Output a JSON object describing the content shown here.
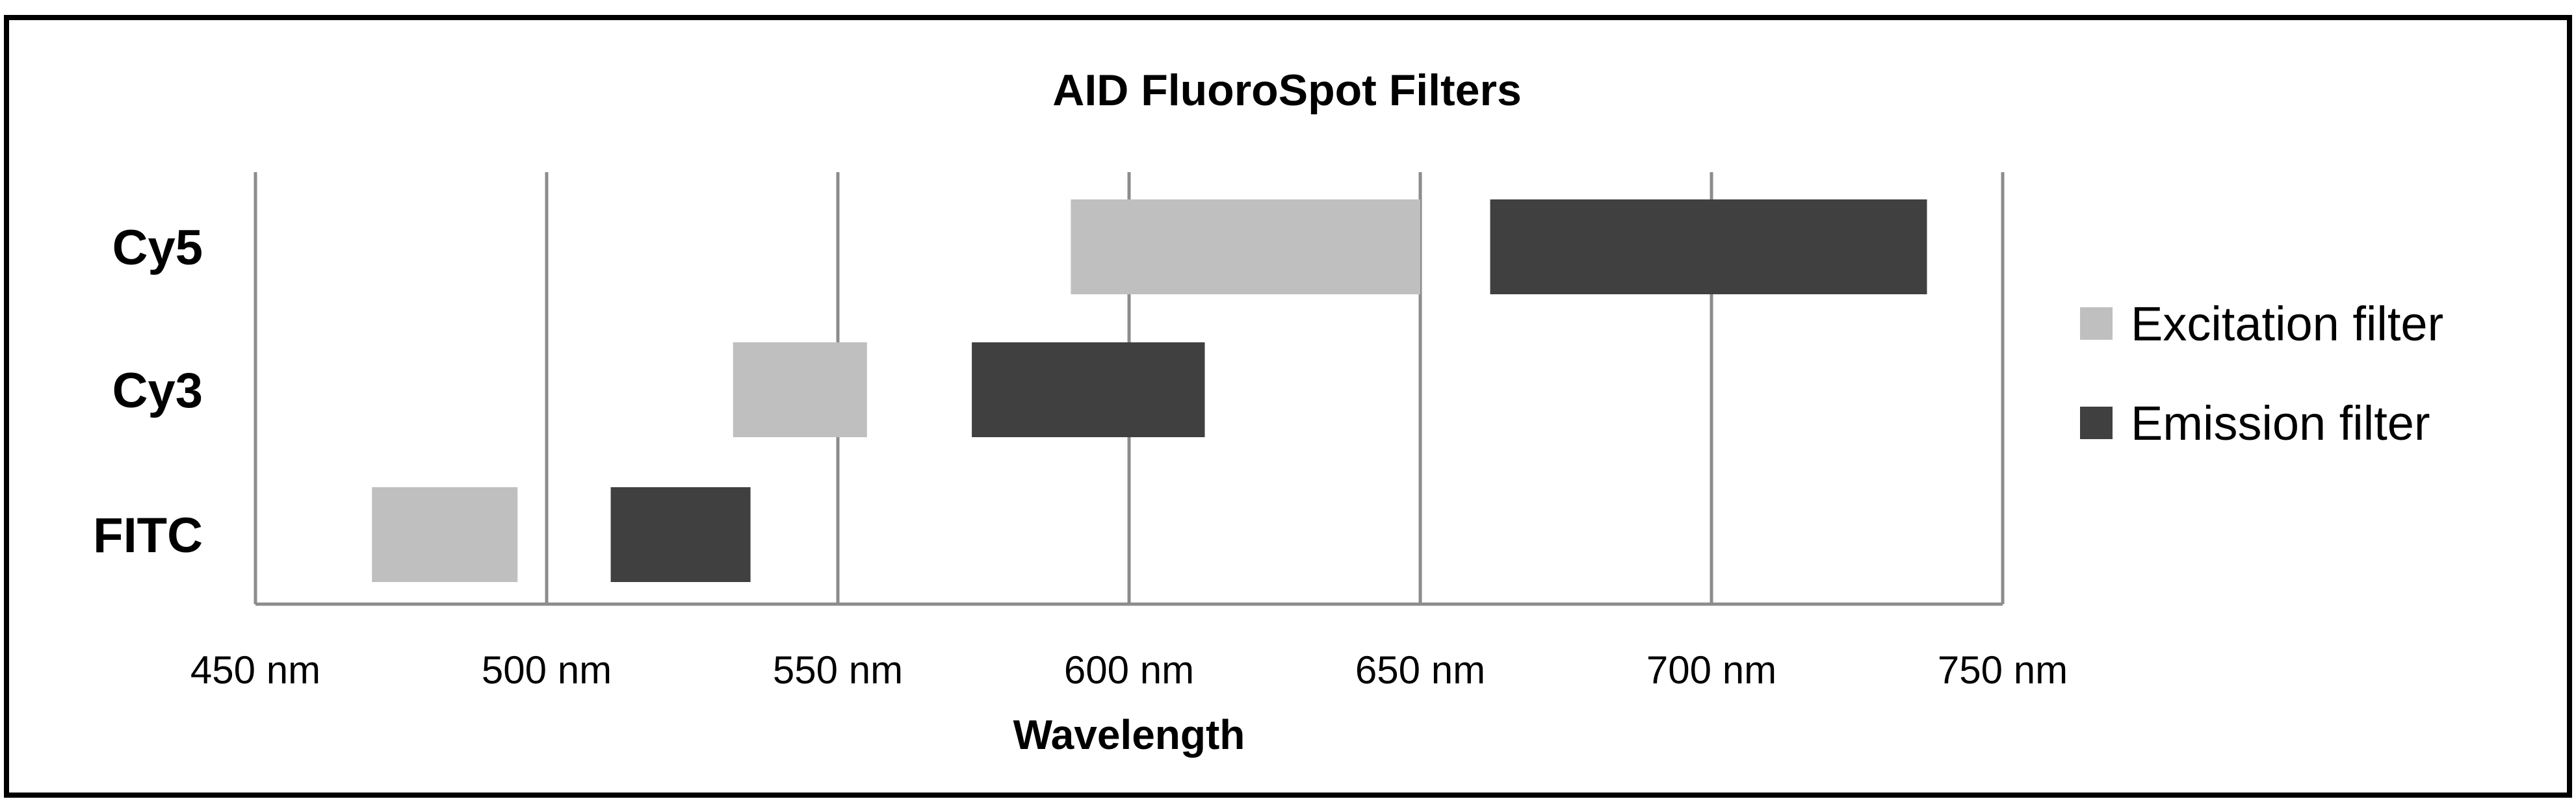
{
  "chart_data": {
    "type": "bar",
    "orientation": "horizontal",
    "stacked_range": true,
    "title": "AID FluoroSpot Filters",
    "xlabel": "Wavelength",
    "ylabel": "",
    "xlim": [
      450,
      750
    ],
    "x_ticks": [
      450,
      500,
      550,
      600,
      650,
      700,
      750
    ],
    "x_tick_labels": [
      "450 nm",
      "500 nm",
      "550 nm",
      "600 nm",
      "650 nm",
      "700 nm",
      "750 nm"
    ],
    "categories": [
      "FITC",
      "Cy3",
      "Cy5"
    ],
    "grid": "vertical",
    "legend_position": "right",
    "series": [
      {
        "name": "Excitation filter",
        "color": "#bfbfbf",
        "ranges": [
          [
            470,
            495
          ],
          [
            532,
            555
          ],
          [
            590,
            650
          ]
        ]
      },
      {
        "name": "Emission filter",
        "color": "#404040",
        "ranges": [
          [
            511,
            535
          ],
          [
            573,
            613
          ],
          [
            662,
            737
          ]
        ]
      }
    ]
  }
}
